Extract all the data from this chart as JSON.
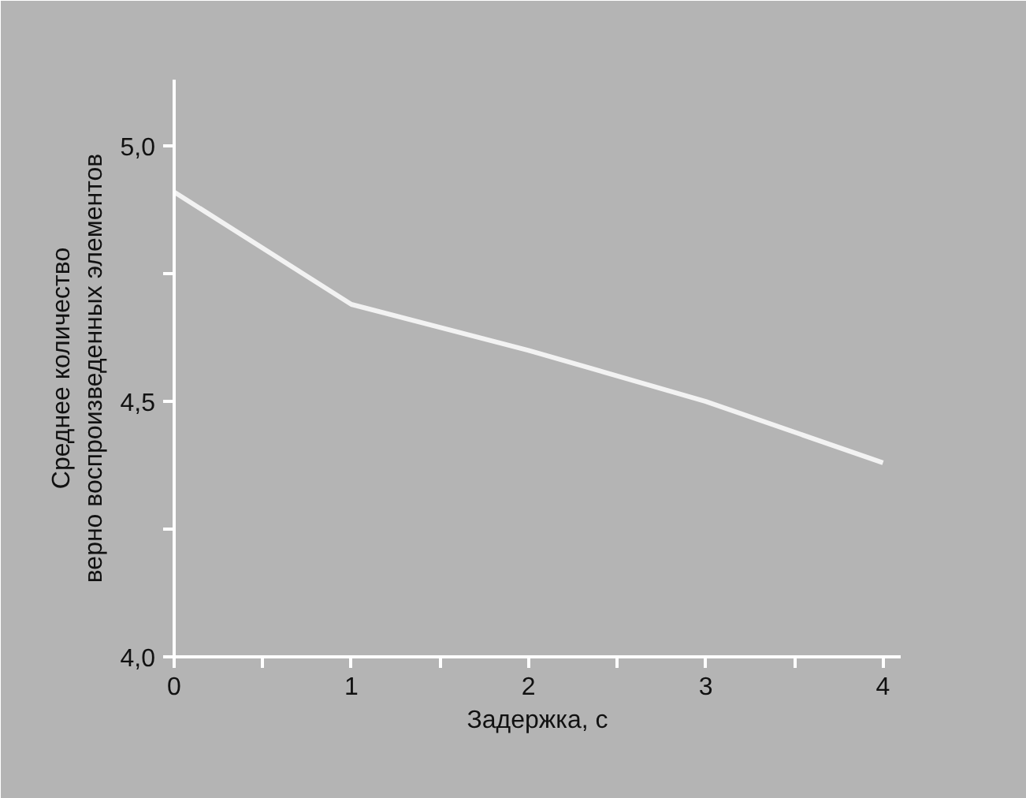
{
  "chart_data": {
    "type": "line",
    "xlabel": "Задержка, с",
    "ylabel": "Среднее количество\nверно воспроизведенных элементов",
    "x": [
      0,
      1,
      2,
      3,
      4
    ],
    "series": [
      {
        "color": "#f2f2f2",
        "values": [
          4.91,
          4.69,
          4.6,
          4.5,
          4.38
        ]
      }
    ],
    "xlim": [
      0,
      4.1
    ],
    "ylim": [
      4.0,
      5.13
    ],
    "xticks": [
      0,
      {
        "value": 0.5,
        "label": null
      },
      1,
      {
        "value": 1.5,
        "label": null
      },
      2,
      {
        "value": 2.5,
        "label": null
      },
      3,
      {
        "value": 3.5,
        "label": null
      },
      4
    ],
    "yticks": [
      {
        "value": 4.0,
        "label": "4,0"
      },
      {
        "value": 4.25,
        "label": null
      },
      {
        "value": 4.5,
        "label": "4,5"
      },
      {
        "value": 4.75,
        "label": null
      },
      {
        "value": 5.0,
        "label": "5,0"
      }
    ],
    "grid": false,
    "marker": "none",
    "line_style": "solid"
  }
}
